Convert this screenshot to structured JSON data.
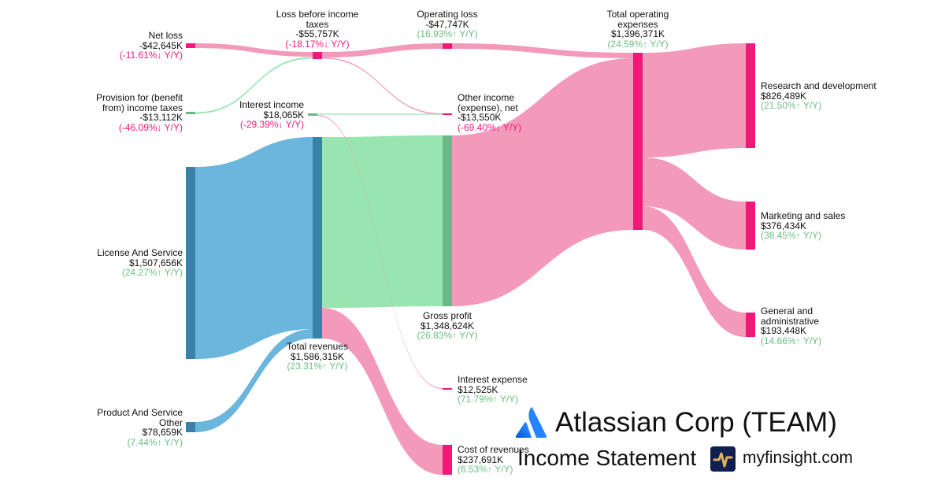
{
  "company": {
    "title": "Atlassian Corp (TEAM)",
    "subtitle": "Income Statement",
    "site": "myfinsight.com"
  },
  "colors": {
    "revenue": "#6ab6dc",
    "revenue_node": "#3682a8",
    "profit": "#98e5b0",
    "profit_node": "#6ab886",
    "expense": "#f39abb",
    "expense_node": "#f0197a",
    "up": "#6cbf84",
    "down": "#f0197a"
  },
  "chart_data": {
    "type": "sankey",
    "nodes": [
      {
        "id": "net_loss",
        "name": "Net loss",
        "value": "-$42,645K",
        "change": "(-11.61%↓ Y/Y)",
        "dir": "down"
      },
      {
        "id": "provision",
        "name": "Provision for (benefit from) income taxes",
        "name_lines": [
          "Provision for (benefit",
          "from) income taxes"
        ],
        "value": "-$13,112K",
        "change": "(-46.09%↓ Y/Y)",
        "dir": "down"
      },
      {
        "id": "license",
        "name": "License And Service",
        "value": "$1,507,656K",
        "change": "(24.27%↑ Y/Y)",
        "dir": "up"
      },
      {
        "id": "product_other",
        "name": "Product And Service Other",
        "name_lines": [
          "Product And Service",
          "Other"
        ],
        "value": "$78,659K",
        "change": "(7.44%↑ Y/Y)",
        "dir": "up"
      },
      {
        "id": "lbt",
        "name": "Loss before income taxes",
        "name_lines": [
          "Loss before income",
          "taxes"
        ],
        "value": "-$55,757K",
        "change": "(-18.17%↓ Y/Y)",
        "dir": "down"
      },
      {
        "id": "interest_income",
        "name": "Interest income",
        "value": "$18,065K",
        "change": "(-29.39%↓ Y/Y)",
        "dir": "down"
      },
      {
        "id": "total_revenues",
        "name": "Total revenues",
        "value": "$1,586,315K",
        "change": "(23.31%↑ Y/Y)",
        "dir": "up"
      },
      {
        "id": "operating_loss",
        "name": "Operating loss",
        "value": "-$47,747K",
        "change": "(16.93%↑ Y/Y)",
        "dir": "up"
      },
      {
        "id": "other_income",
        "name": "Other income (expense), net",
        "name_lines": [
          "Other income",
          "(expense), net"
        ],
        "value": "-$13,550K",
        "change": "(-69.40%↓ Y/Y)",
        "dir": "down"
      },
      {
        "id": "gross_profit",
        "name": "Gross profit",
        "value": "$1,348,624K",
        "change": "(26.83%↑ Y/Y)",
        "dir": "up"
      },
      {
        "id": "interest_expense",
        "name": "Interest expense",
        "value": "$12,525K",
        "change": "(71.79%↑ Y/Y)",
        "dir": "up"
      },
      {
        "id": "cost_of_revenues",
        "name": "Cost of revenues",
        "value": "$237,691K",
        "change": "(6.53%↑ Y/Y)",
        "dir": "up"
      },
      {
        "id": "total_opex",
        "name": "Total operating expenses",
        "name_lines": [
          "Total operating",
          "expenses"
        ],
        "value": "$1,396,371K",
        "change": "(24.59%↑ Y/Y)",
        "dir": "up"
      },
      {
        "id": "rnd",
        "name": "Research and development",
        "value": "$826,489K",
        "change": "(21.50%↑ Y/Y)",
        "dir": "up"
      },
      {
        "id": "mns",
        "name": "Marketing and sales",
        "value": "$376,434K",
        "change": "(38.45%↑ Y/Y)",
        "dir": "up"
      },
      {
        "id": "gna",
        "name": "General and administrative",
        "name_lines": [
          "General and",
          "administrative"
        ],
        "value": "$193,448K",
        "change": "(14.66%↑ Y/Y)",
        "dir": "up"
      }
    ],
    "links": [
      {
        "source": "license",
        "target": "total_revenues",
        "value": 1507656
      },
      {
        "source": "product_other",
        "target": "total_revenues",
        "value": 78659
      },
      {
        "source": "total_revenues",
        "target": "gross_profit",
        "value": 1348624
      },
      {
        "source": "total_revenues",
        "target": "cost_of_revenues",
        "value": 237691
      },
      {
        "source": "gross_profit",
        "target": "total_opex",
        "value": 1348624
      },
      {
        "source": "operating_loss",
        "target": "total_opex",
        "value": 47747
      },
      {
        "source": "total_opex",
        "target": "rnd",
        "value": 826489
      },
      {
        "source": "total_opex",
        "target": "mns",
        "value": 376434
      },
      {
        "source": "total_opex",
        "target": "gna",
        "value": 193448
      },
      {
        "source": "lbt",
        "target": "operating_loss",
        "value": 47747
      },
      {
        "source": "lbt",
        "target": "other_income",
        "value": 13550
      },
      {
        "source": "net_loss",
        "target": "lbt",
        "value": 42645
      },
      {
        "source": "provision",
        "target": "lbt",
        "value": 13112
      },
      {
        "source": "interest_income",
        "target": "other_income",
        "value": 18065
      },
      {
        "source": "interest_income",
        "target": "interest_expense",
        "value": 12525
      }
    ]
  }
}
